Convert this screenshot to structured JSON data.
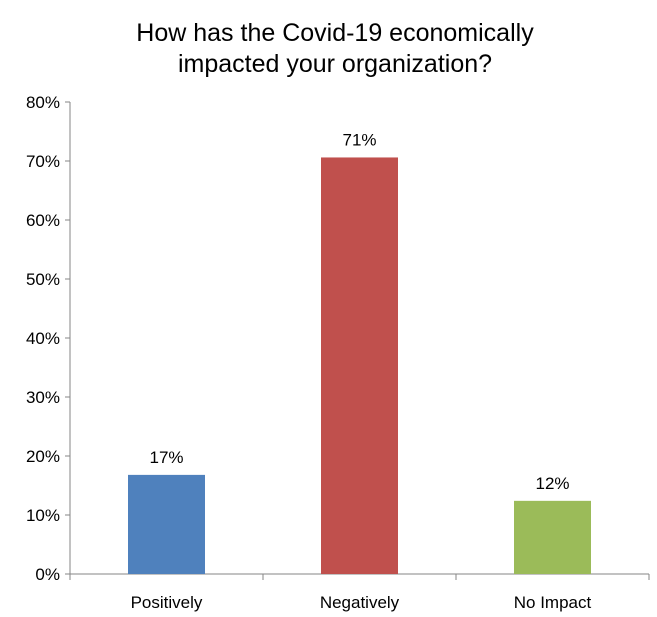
{
  "chart_data": {
    "type": "bar",
    "title_lines": [
      "How has the Covid-19 economically",
      "impacted your organization?"
    ],
    "categories": [
      "Positively",
      "Negatively",
      "No Impact"
    ],
    "values": [
      16.8,
      70.6,
      12.4
    ],
    "data_labels": [
      "17%",
      "71%",
      "12%"
    ],
    "colors": [
      "#4F81BD",
      "#C0504D",
      "#9BBB59"
    ],
    "ylim": [
      0,
      80
    ],
    "yticks": [
      0,
      10,
      20,
      30,
      40,
      50,
      60,
      70,
      80
    ],
    "ytick_labels": [
      "0%",
      "10%",
      "20%",
      "30%",
      "40%",
      "50%",
      "60%",
      "70%",
      "80%"
    ],
    "xlabel": "",
    "ylabel": "",
    "grid": false,
    "legend": "none"
  }
}
